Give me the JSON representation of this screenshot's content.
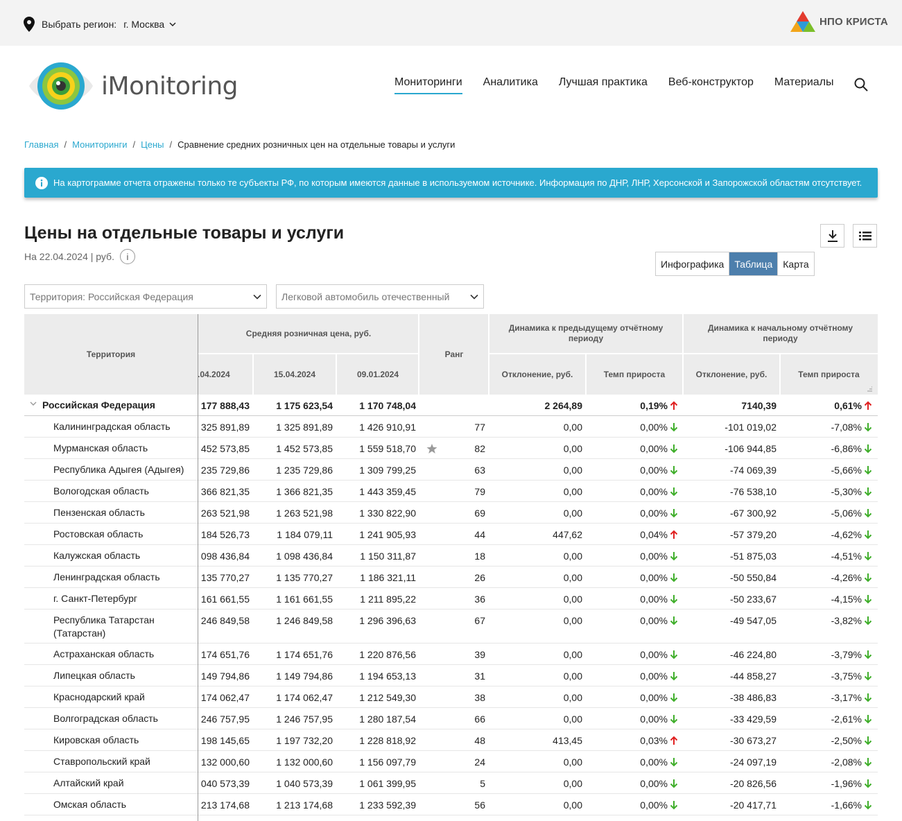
{
  "topbar": {
    "region_label": "Выбрать регион:",
    "region_value": "г. Москва",
    "brand": "НПО КРИСТА"
  },
  "header": {
    "logo_text": "iMonitoring",
    "nav": [
      "Мониторинги",
      "Аналитика",
      "Лучшая практика",
      "Веб-конструктор",
      "Материалы"
    ]
  },
  "breadcrumb": [
    "Главная",
    "Мониторинги",
    "Цены",
    "Сравнение средних розничных цен на отдельные товары и услуги"
  ],
  "info_text": "На картограмме отчета отражены только те субъекты РФ, по которым имеются данные в используемом источнике. Информация по ДНР, ЛНР, Херсонской и Запорожской областям отсутствует.",
  "title": "Цены на отдельные товары и услуги",
  "subtitle": "На 22.04.2024 | руб.",
  "info_glyph": "i",
  "view_tabs": [
    "Инфографика",
    "Таблица",
    "Карта"
  ],
  "filters": {
    "territory": "Территория: Российская  Федерация",
    "product": "Легковой автомобиль отечественный"
  },
  "table": {
    "headers": {
      "territory": "Территория",
      "avg_price": "Средняя розничная цена, руб.",
      "date1": ".04.2024",
      "date2": "15.04.2024",
      "date3": "09.01.2024",
      "rank": "Ранг",
      "dyn_prev": "Динамика к предыдущему отчётному периоду",
      "dyn_start": "Динамика к начальному отчётному периоду",
      "dev": "Отклонение, руб.",
      "rate": "Темп прироста"
    },
    "rows": [
      {
        "name": "Российская Федерация",
        "d1": "177 888,43",
        "d2": "1 175 623,54",
        "d3": "1 170 748,04",
        "rank": "",
        "dev1": "2 264,89",
        "rate1": "0,19%",
        "dir1": "up",
        "dev2": "7140,39",
        "rate2": "0,61%",
        "dir2": "up",
        "total": true
      },
      {
        "name": "Калининградская область",
        "d1": "325 891,89",
        "d2": "1 325 891,89",
        "d3": "1 426 910,91",
        "rank": "77",
        "dev1": "0,00",
        "rate1": "0,00%",
        "dir1": "down",
        "dev2": "-101 019,02",
        "rate2": "-7,08%",
        "dir2": "down"
      },
      {
        "name": "Мурманская область",
        "d1": "452 573,85",
        "d2": "1 452 573,85",
        "d3": "1 559 518,70",
        "rank": "82",
        "dev1": "0,00",
        "rate1": "0,00%",
        "dir1": "down",
        "dev2": "-106 944,85",
        "rate2": "-6,86%",
        "dir2": "down",
        "star": true
      },
      {
        "name": "Республика Адыгея (Адыгея)",
        "d1": "235 729,86",
        "d2": "1 235 729,86",
        "d3": "1 309 799,25",
        "rank": "63",
        "dev1": "0,00",
        "rate1": "0,00%",
        "dir1": "down",
        "dev2": "-74 069,39",
        "rate2": "-5,66%",
        "dir2": "down"
      },
      {
        "name": "Вологодская область",
        "d1": "366 821,35",
        "d2": "1 366 821,35",
        "d3": "1 443 359,45",
        "rank": "79",
        "dev1": "0,00",
        "rate1": "0,00%",
        "dir1": "down",
        "dev2": "-76 538,10",
        "rate2": "-5,30%",
        "dir2": "down"
      },
      {
        "name": "Пензенская область",
        "d1": "263 521,98",
        "d2": "1 263 521,98",
        "d3": "1 330 822,90",
        "rank": "69",
        "dev1": "0,00",
        "rate1": "0,00%",
        "dir1": "down",
        "dev2": "-67 300,92",
        "rate2": "-5,06%",
        "dir2": "down"
      },
      {
        "name": "Ростовская область",
        "d1": "184 526,73",
        "d2": "1 184 079,11",
        "d3": "1 241 905,93",
        "rank": "44",
        "dev1": "447,62",
        "rate1": "0,04%",
        "dir1": "up",
        "dev2": "-57 379,20",
        "rate2": "-4,62%",
        "dir2": "down"
      },
      {
        "name": "Калужская область",
        "d1": "098 436,84",
        "d2": "1 098 436,84",
        "d3": "1 150 311,87",
        "rank": "18",
        "dev1": "0,00",
        "rate1": "0,00%",
        "dir1": "down",
        "dev2": "-51 875,03",
        "rate2": "-4,51%",
        "dir2": "down"
      },
      {
        "name": "Ленинградская область",
        "d1": "135 770,27",
        "d2": "1 135 770,27",
        "d3": "1 186 321,11",
        "rank": "26",
        "dev1": "0,00",
        "rate1": "0,00%",
        "dir1": "down",
        "dev2": "-50 550,84",
        "rate2": "-4,26%",
        "dir2": "down"
      },
      {
        "name": "г. Санкт-Петербург",
        "d1": "161 661,55",
        "d2": "1 161 661,55",
        "d3": "1 211 895,22",
        "rank": "36",
        "dev1": "0,00",
        "rate1": "0,00%",
        "dir1": "down",
        "dev2": "-50 233,67",
        "rate2": "-4,15%",
        "dir2": "down"
      },
      {
        "name": "Республика Татарстан (Татарстан)",
        "d1": "246 849,58",
        "d2": "1 246 849,58",
        "d3": "1 296 396,63",
        "rank": "67",
        "dev1": "0,00",
        "rate1": "0,00%",
        "dir1": "down",
        "dev2": "-49 547,05",
        "rate2": "-3,82%",
        "dir2": "down",
        "tall": true
      },
      {
        "name": "Астраханская область",
        "d1": "174 651,76",
        "d2": "1 174 651,76",
        "d3": "1 220 876,56",
        "rank": "39",
        "dev1": "0,00",
        "rate1": "0,00%",
        "dir1": "down",
        "dev2": "-46 224,80",
        "rate2": "-3,79%",
        "dir2": "down"
      },
      {
        "name": "Липецкая область",
        "d1": "149 794,86",
        "d2": "1 149 794,86",
        "d3": "1 194 653,13",
        "rank": "31",
        "dev1": "0,00",
        "rate1": "0,00%",
        "dir1": "down",
        "dev2": "-44 858,27",
        "rate2": "-3,75%",
        "dir2": "down"
      },
      {
        "name": "Краснодарский край",
        "d1": "174 062,47",
        "d2": "1 174 062,47",
        "d3": "1 212 549,30",
        "rank": "38",
        "dev1": "0,00",
        "rate1": "0,00%",
        "dir1": "down",
        "dev2": "-38 486,83",
        "rate2": "-3,17%",
        "dir2": "down"
      },
      {
        "name": "Волгоградская область",
        "d1": "246 757,95",
        "d2": "1 246 757,95",
        "d3": "1 280 187,54",
        "rank": "66",
        "dev1": "0,00",
        "rate1": "0,00%",
        "dir1": "down",
        "dev2": "-33 429,59",
        "rate2": "-2,61%",
        "dir2": "down"
      },
      {
        "name": "Кировская область",
        "d1": "198 145,65",
        "d2": "1 197 732,20",
        "d3": "1 228 818,92",
        "rank": "48",
        "dev1": "413,45",
        "rate1": "0,03%",
        "dir1": "up",
        "dev2": "-30 673,27",
        "rate2": "-2,50%",
        "dir2": "down"
      },
      {
        "name": "Ставропольский край",
        "d1": "132 000,60",
        "d2": "1 132 000,60",
        "d3": "1 156 097,79",
        "rank": "24",
        "dev1": "0,00",
        "rate1": "0,00%",
        "dir1": "down",
        "dev2": "-24 097,19",
        "rate2": "-2,08%",
        "dir2": "down"
      },
      {
        "name": "Алтайский край",
        "d1": "040 573,39",
        "d2": "1 040 573,39",
        "d3": "1 061 399,95",
        "rank": "5",
        "dev1": "0,00",
        "rate1": "0,00%",
        "dir1": "down",
        "dev2": "-20 826,56",
        "rate2": "-1,96%",
        "dir2": "down"
      },
      {
        "name": "Омская область",
        "d1": "213 174,68",
        "d2": "1 213 174,68",
        "d3": "1 233 592,39",
        "rank": "56",
        "dev1": "0,00",
        "rate1": "0,00%",
        "dir1": "down",
        "dev2": "-20 417,71",
        "rate2": "-1,66%",
        "dir2": "down"
      }
    ]
  },
  "colors": {
    "accent": "#2aa8cf",
    "tab_active": "#4d7fac",
    "up": "#e02020",
    "down": "#3fae2a"
  }
}
